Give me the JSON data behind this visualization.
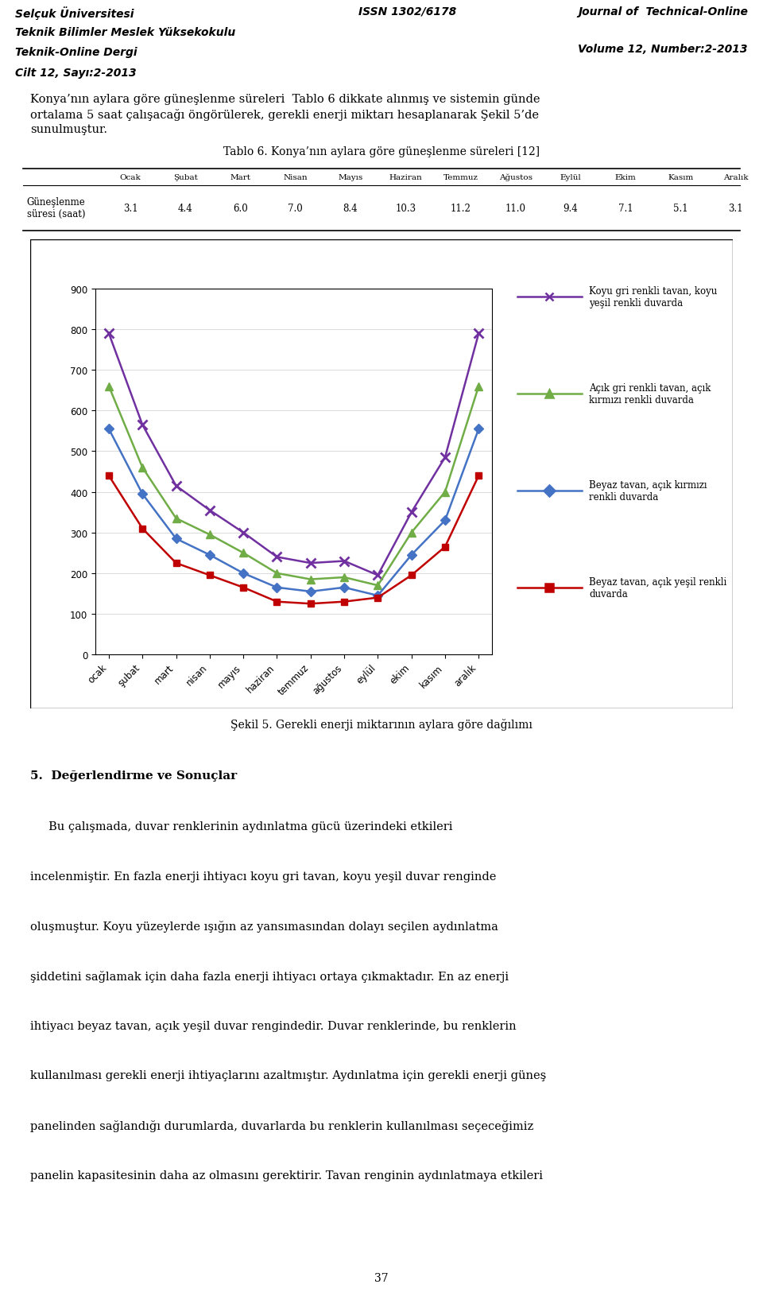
{
  "header_left": [
    "Selçuk Üniversitesi",
    "Teknik Bilimler Meslek Yüksekokulu",
    "Teknik-Online Dergi",
    "Cilt 12, Sayı:2-2013"
  ],
  "header_center": "ISSN 1302/6178",
  "header_right": [
    "Journal of  Technical-Online",
    "Volume 12, Number:2-2013"
  ],
  "header_bg": "#d3d3d3",
  "body_text_1": "Konya’nın aylara göre güneşlenme süreleri  Tablo 6 dikkate alınmış ve sistemin günde ortalama 5 saat çalışacağı öngörülerek, gerekli enerji miktarı hesaplanarak Şekil 5’de sunulmuştur.",
  "table_title": "Tablo 6. Konya’nın aylara göre güneşlenme süreleri [12]",
  "months_tr": [
    "Ocak",
    "Şubat",
    "Mart",
    "Nisan",
    "Mayıs",
    "Haziran",
    "Temmuz",
    "Ağustos",
    "Eylül",
    "Ekim",
    "Kasım",
    "Aralık"
  ],
  "months_lower": [
    "ocak",
    "şubat",
    "mart",
    "nisan",
    "mayıs",
    "haziran",
    "temmuz",
    "ağustos",
    "eylül",
    "ekim",
    "kasım",
    "aralık"
  ],
  "row_label_1": "Güneşlenme",
  "row_label_2": "süresi (saat)",
  "sunshine_hours": [
    3.1,
    4.4,
    6.0,
    7.0,
    8.4,
    10.3,
    11.2,
    11.0,
    9.4,
    7.1,
    5.1,
    3.1
  ],
  "series1_label": "Koyu gri renkli tavan, koyu\nyeşil renkli duvarda",
  "series2_label": "Açık gri renkli tavan, açık\nkırmızı renkli duvarda",
  "series3_label": "Beyaz tavan, açık kırmızı\nrenkli duvarda",
  "series4_label": "Beyaz tavan, açık yeşil renkli\nduvarda",
  "series1_color": "#7030a0",
  "series2_color": "#70ad47",
  "series3_color": "#4472c4",
  "series4_color": "#c00000",
  "series1_data": [
    790,
    565,
    415,
    355,
    300,
    240,
    225,
    230,
    195,
    350,
    485,
    790
  ],
  "series2_data": [
    660,
    460,
    335,
    295,
    250,
    200,
    185,
    190,
    170,
    300,
    400,
    660
  ],
  "series3_data": [
    555,
    395,
    285,
    245,
    200,
    165,
    155,
    165,
    145,
    245,
    330,
    555
  ],
  "series4_data": [
    440,
    310,
    225,
    195,
    165,
    130,
    125,
    130,
    140,
    195,
    265,
    440
  ],
  "chart_ylim": [
    0,
    900
  ],
  "chart_yticks": [
    0,
    100,
    200,
    300,
    400,
    500,
    600,
    700,
    800,
    900
  ],
  "fig_caption": "Şekil 5. Gerekli enerji miktarının aylara göre dağılımı",
  "section_title": "5.  Değerlendirme ve Sonuçlar",
  "body_text_2_lines": [
    "     Bu çalışmada, duvar renklerinin aydınlatma gücü üzerindeki etkileri",
    "incelenmiştir. En fazla enerji ihtiyacı koyu gri tavan, koyu yeşil duvar renginde",
    "oluşmuştur. Koyu yüzeylerde ışığın az yansımasından dolayı seçilen aydınlatma",
    "şiddetini sağlamak için daha fazla enerji ihtiyacı ortaya çıkmaktadır. En az enerji",
    "ihtiyacı beyaz tavan, açık yeşil duvar rengindedir. Duvar renklerinde, bu renklerin",
    "kullanılması gerekli enerji ihtiyaçlarını azaltmıştır. Aydınlatma için gerekli enerji güneş",
    "panelinden sağlandığı durumlarda, duvarlarda bu renklerin kullanılması seçeceğimiz",
    "panelin kapasitesinin daha az olmasını gerektirir. Tavan renginin aydınlatmaya etkileri"
  ],
  "page_number": "37"
}
